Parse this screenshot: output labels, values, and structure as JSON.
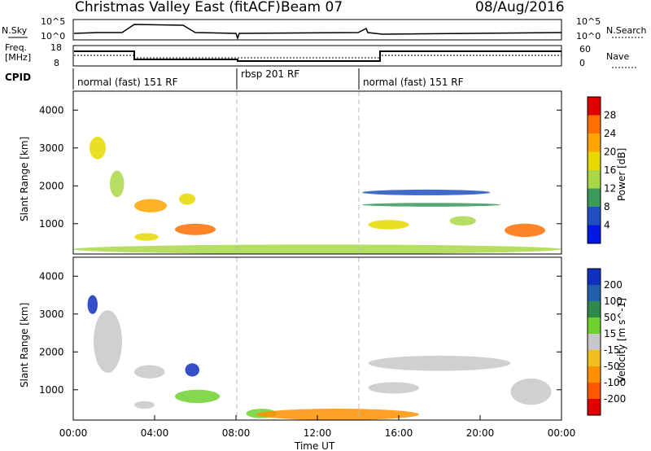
{
  "header": {
    "station": "Christmas Valley East (fitACF)",
    "beam": "Beam 07",
    "date": "08/Aug/2016"
  },
  "top_panels": {
    "nsky_label": "N.Sky",
    "nsky_ticks": [
      "10^5",
      "10^0"
    ],
    "nsearch_label": "N.Search",
    "nsearch_ticks": [
      "10^5",
      "10^0"
    ],
    "freq_label": "Freq.",
    "freq_unit": "[MHz]",
    "freq_ticks": [
      "18",
      "8"
    ],
    "nave_label": "Nave",
    "nave_ticks": [
      "60",
      "0"
    ],
    "cpid_label": "CPID",
    "cpid_segments": [
      {
        "label": "normal (fast) 151 RF",
        "start_h": 0,
        "end_h": 8
      },
      {
        "label": "rbsp 201 RF",
        "start_h": 8,
        "end_h": 14
      },
      {
        "label": "normal (fast) 151 RF",
        "start_h": 14,
        "end_h": 24
      }
    ]
  },
  "power_panel": {
    "colorbar_label": "Power [dB]",
    "colorbar_ticks": [
      "28",
      "24",
      "20",
      "16",
      "12",
      "8",
      "4"
    ],
    "colors": [
      "#e00000",
      "#ff7000",
      "#ffa500",
      "#e8d800",
      "#a8d848",
      "#3a9a5a",
      "#2050c0",
      "#0018e0"
    ]
  },
  "velocity_panel": {
    "colorbar_label": "Velocity [m s^-1]",
    "colorbar_ticks": [
      "200",
      "100",
      "50",
      "15",
      "-15",
      "-50",
      "-100",
      "-200"
    ],
    "colors": [
      "#1030c0",
      "#2060a8",
      "#2e8a4a",
      "#70d030",
      "#c8c8c8",
      "#f0c020",
      "#ff9000",
      "#ff5800",
      "#e00000"
    ]
  },
  "axes": {
    "ylabel": "Slant Range [km]",
    "y_ticks": [
      "4000",
      "3000",
      "2000",
      "1000"
    ],
    "x_ticks": [
      "00:00",
      "04:00",
      "08:00",
      "12:00",
      "16:00",
      "20:00",
      "00:00"
    ],
    "xlabel": "Time UT"
  },
  "chart_data": [
    {
      "type": "heatmap",
      "title": "Power",
      "xlabel": "Time UT",
      "ylabel": "Slant Range [km]",
      "xlim": [
        0,
        24
      ],
      "ylim": [
        200,
        4500
      ],
      "colorbar": {
        "label": "Power [dB]",
        "range": [
          0,
          30
        ]
      },
      "regions": [
        {
          "t": [
            0.8,
            1.6
          ],
          "r": [
            2700,
            3300
          ],
          "value": 16
        },
        {
          "t": [
            1.8,
            2.5
          ],
          "r": [
            1700,
            2400
          ],
          "value": 14
        },
        {
          "t": [
            3.0,
            4.6
          ],
          "r": [
            1300,
            1650
          ],
          "value": 22
        },
        {
          "t": [
            5.2,
            6.0
          ],
          "r": [
            1500,
            1800
          ],
          "value": 18
        },
        {
          "t": [
            5.0,
            7.0
          ],
          "r": [
            700,
            1000
          ],
          "value": 26
        },
        {
          "t": [
            3.0,
            4.2
          ],
          "r": [
            550,
            750
          ],
          "value": 18
        },
        {
          "t": [
            0.0,
            24.0
          ],
          "r": [
            200,
            450
          ],
          "value": 12
        },
        {
          "t": [
            14.2,
            21.0
          ],
          "r": [
            1450,
            1550
          ],
          "value": 8
        },
        {
          "t": [
            14.2,
            20.5
          ],
          "r": [
            1750,
            1900
          ],
          "value": 6
        },
        {
          "t": [
            14.5,
            16.5
          ],
          "r": [
            850,
            1100
          ],
          "value": 18
        },
        {
          "t": [
            18.5,
            19.8
          ],
          "r": [
            950,
            1200
          ],
          "value": 14
        },
        {
          "t": [
            21.2,
            23.2
          ],
          "r": [
            650,
            1000
          ],
          "value": 26
        }
      ]
    },
    {
      "type": "heatmap",
      "title": "Velocity",
      "xlabel": "Time UT",
      "ylabel": "Slant Range [km]",
      "xlim": [
        0,
        24
      ],
      "ylim": [
        200,
        4500
      ],
      "colorbar": {
        "label": "Velocity [m s^-1]",
        "range": [
          -200,
          200
        ]
      },
      "regions": [
        {
          "t": [
            0.7,
            1.2
          ],
          "r": [
            3000,
            3500
          ],
          "value": 200
        },
        {
          "t": [
            1.0,
            2.4
          ],
          "r": [
            1450,
            3100
          ],
          "value": 0
        },
        {
          "t": [
            3.0,
            4.5
          ],
          "r": [
            1300,
            1650
          ],
          "value": 0
        },
        {
          "t": [
            5.5,
            6.2
          ],
          "r": [
            1350,
            1700
          ],
          "value": 200
        },
        {
          "t": [
            5.0,
            7.2
          ],
          "r": [
            650,
            1000
          ],
          "value": 30
        },
        {
          "t": [
            3.0,
            4.0
          ],
          "r": [
            500,
            700
          ],
          "value": 0
        },
        {
          "t": [
            8.5,
            10.0
          ],
          "r": [
            250,
            500
          ],
          "value": 30
        },
        {
          "t": [
            9.0,
            17.0
          ],
          "r": [
            200,
            500
          ],
          "value": -60
        },
        {
          "t": [
            14.5,
            21.5
          ],
          "r": [
            1500,
            1900
          ],
          "value": 0
        },
        {
          "t": [
            14.5,
            17.0
          ],
          "r": [
            900,
            1200
          ],
          "value": 0
        },
        {
          "t": [
            21.5,
            23.5
          ],
          "r": [
            600,
            1300
          ],
          "value": 0
        }
      ]
    }
  ]
}
